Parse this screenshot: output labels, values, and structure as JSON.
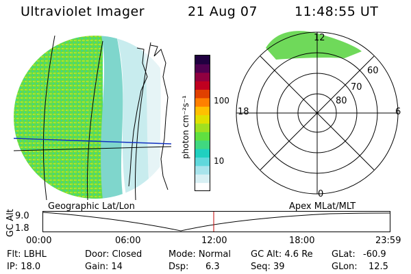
{
  "header": {
    "title": "Ultraviolet Imager",
    "date": "21 Aug 07",
    "time": "11:48:55 UT"
  },
  "colorbar": {
    "unit_label": "photon cm⁻²s⁻¹",
    "ticks": [
      "100",
      "10"
    ],
    "colors": [
      "#ffffff",
      "#d8f0f4",
      "#a8e4ec",
      "#60d8dc",
      "#20d0c0",
      "#40d880",
      "#60e040",
      "#a0e020",
      "#e0e000",
      "#ffc000",
      "#ff8000",
      "#e04000",
      "#c00020",
      "#900040",
      "#500050",
      "#200040"
    ]
  },
  "polar_plot": {
    "mlt_labels": {
      "top": "12",
      "left": "18",
      "right": "6",
      "bottom": "0"
    },
    "lat_labels": [
      "60",
      "70",
      "80"
    ]
  },
  "timeline": {
    "left_title": "Geographic Lat/Lon",
    "right_title": "Apex  MLat/MLT",
    "axis_label": "GC Alt",
    "y_ticks": [
      "9.0",
      "1.8"
    ],
    "x_ticks": [
      "00:00",
      "06:00",
      "12:00",
      "18:00",
      "23:59"
    ],
    "marker_hour": 11.81
  },
  "status": {
    "flt": "Flt: LBHL",
    "ip": "IP: 18.0",
    "door": "Door: Closed",
    "gain": "Gain: 14",
    "mode": "Mode: Normal",
    "dsp_label": "Dsp:",
    "dsp_value": "6.3",
    "gc_alt": "GC Alt: 4.6 Re",
    "seq": "Seq: 39",
    "glat_label": "GLat:",
    "glat_value": "-60.9",
    "glon_label": "GLon:",
    "glon_value": "12.5"
  }
}
